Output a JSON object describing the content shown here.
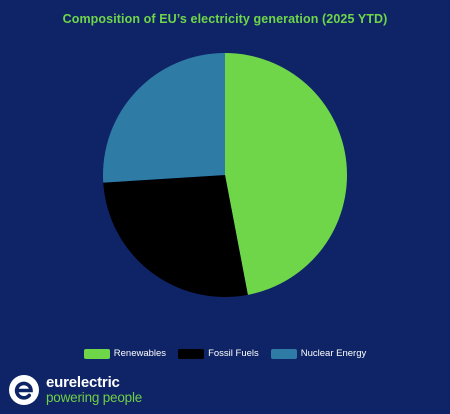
{
  "chart_data": {
    "type": "pie",
    "title": "Composition of EU’s electricity generation (2025 YTD)",
    "categories": [
      "Renewables",
      "Fossil Fuels",
      "Nuclear Energy"
    ],
    "values": [
      47,
      27,
      26
    ],
    "colors": [
      "#6fd64a",
      "#000000",
      "#2e7ba6"
    ],
    "legend_position": "bottom"
  },
  "colors": {
    "background": "#0f2466",
    "title": "#6fd64a",
    "legend_text": "#ffffff"
  },
  "logo": {
    "icon": "eurelectric-e-icon",
    "name": "eurelectric",
    "tagline": "powering people"
  }
}
